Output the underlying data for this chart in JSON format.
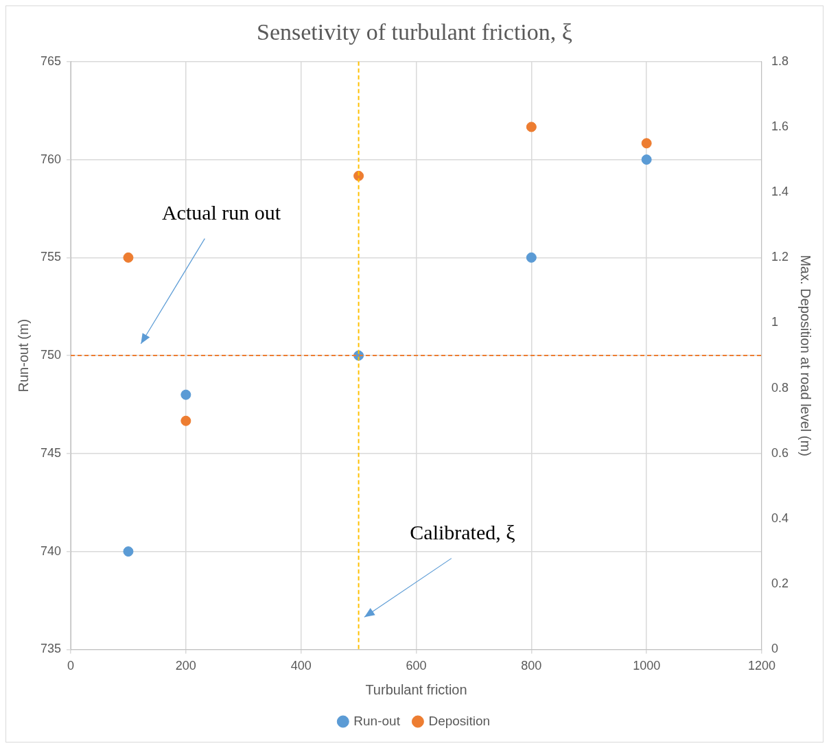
{
  "chart_data": {
    "type": "scatter",
    "title": "Sensetivity of turbulant friction, ξ",
    "xlabel": "Turbulant friction",
    "ylabel": "Run-out (m)",
    "y2label": "Max. Deposition at road level (m)",
    "x": [
      100,
      200,
      500,
      800,
      1000
    ],
    "series": [
      {
        "name": "Run-out",
        "color": "#5b9bd5",
        "values": [
          740,
          748,
          750,
          755,
          760
        ]
      },
      {
        "name": "Deposition",
        "color": "#ed7d31",
        "values": [
          1.2,
          0.7,
          1.45,
          1.6,
          1.55
        ],
        "axis": "y2"
      }
    ],
    "xlim": [
      0,
      1200
    ],
    "xticks": [
      0,
      200,
      400,
      600,
      800,
      1000,
      1200
    ],
    "ylim": [
      735,
      765
    ],
    "yticks": [
      735,
      740,
      745,
      750,
      755,
      760,
      765
    ],
    "y2lim": [
      0,
      1.8
    ],
    "y2ticks": [
      0,
      0.2,
      0.4,
      0.6,
      0.8,
      1,
      1.2,
      1.4,
      1.6,
      1.8
    ],
    "ref_lines": [
      {
        "axis": "y",
        "value": 750,
        "color": "#ed7d31",
        "line_style": "dashed"
      },
      {
        "axis": "x",
        "value": 500,
        "color": "#ffc000",
        "line_style": "dashed"
      }
    ],
    "annotations": [
      "Actual run out",
      "Calibrated, ξ"
    ],
    "grid": true,
    "legend": "bottom",
    "marker": "circle"
  }
}
